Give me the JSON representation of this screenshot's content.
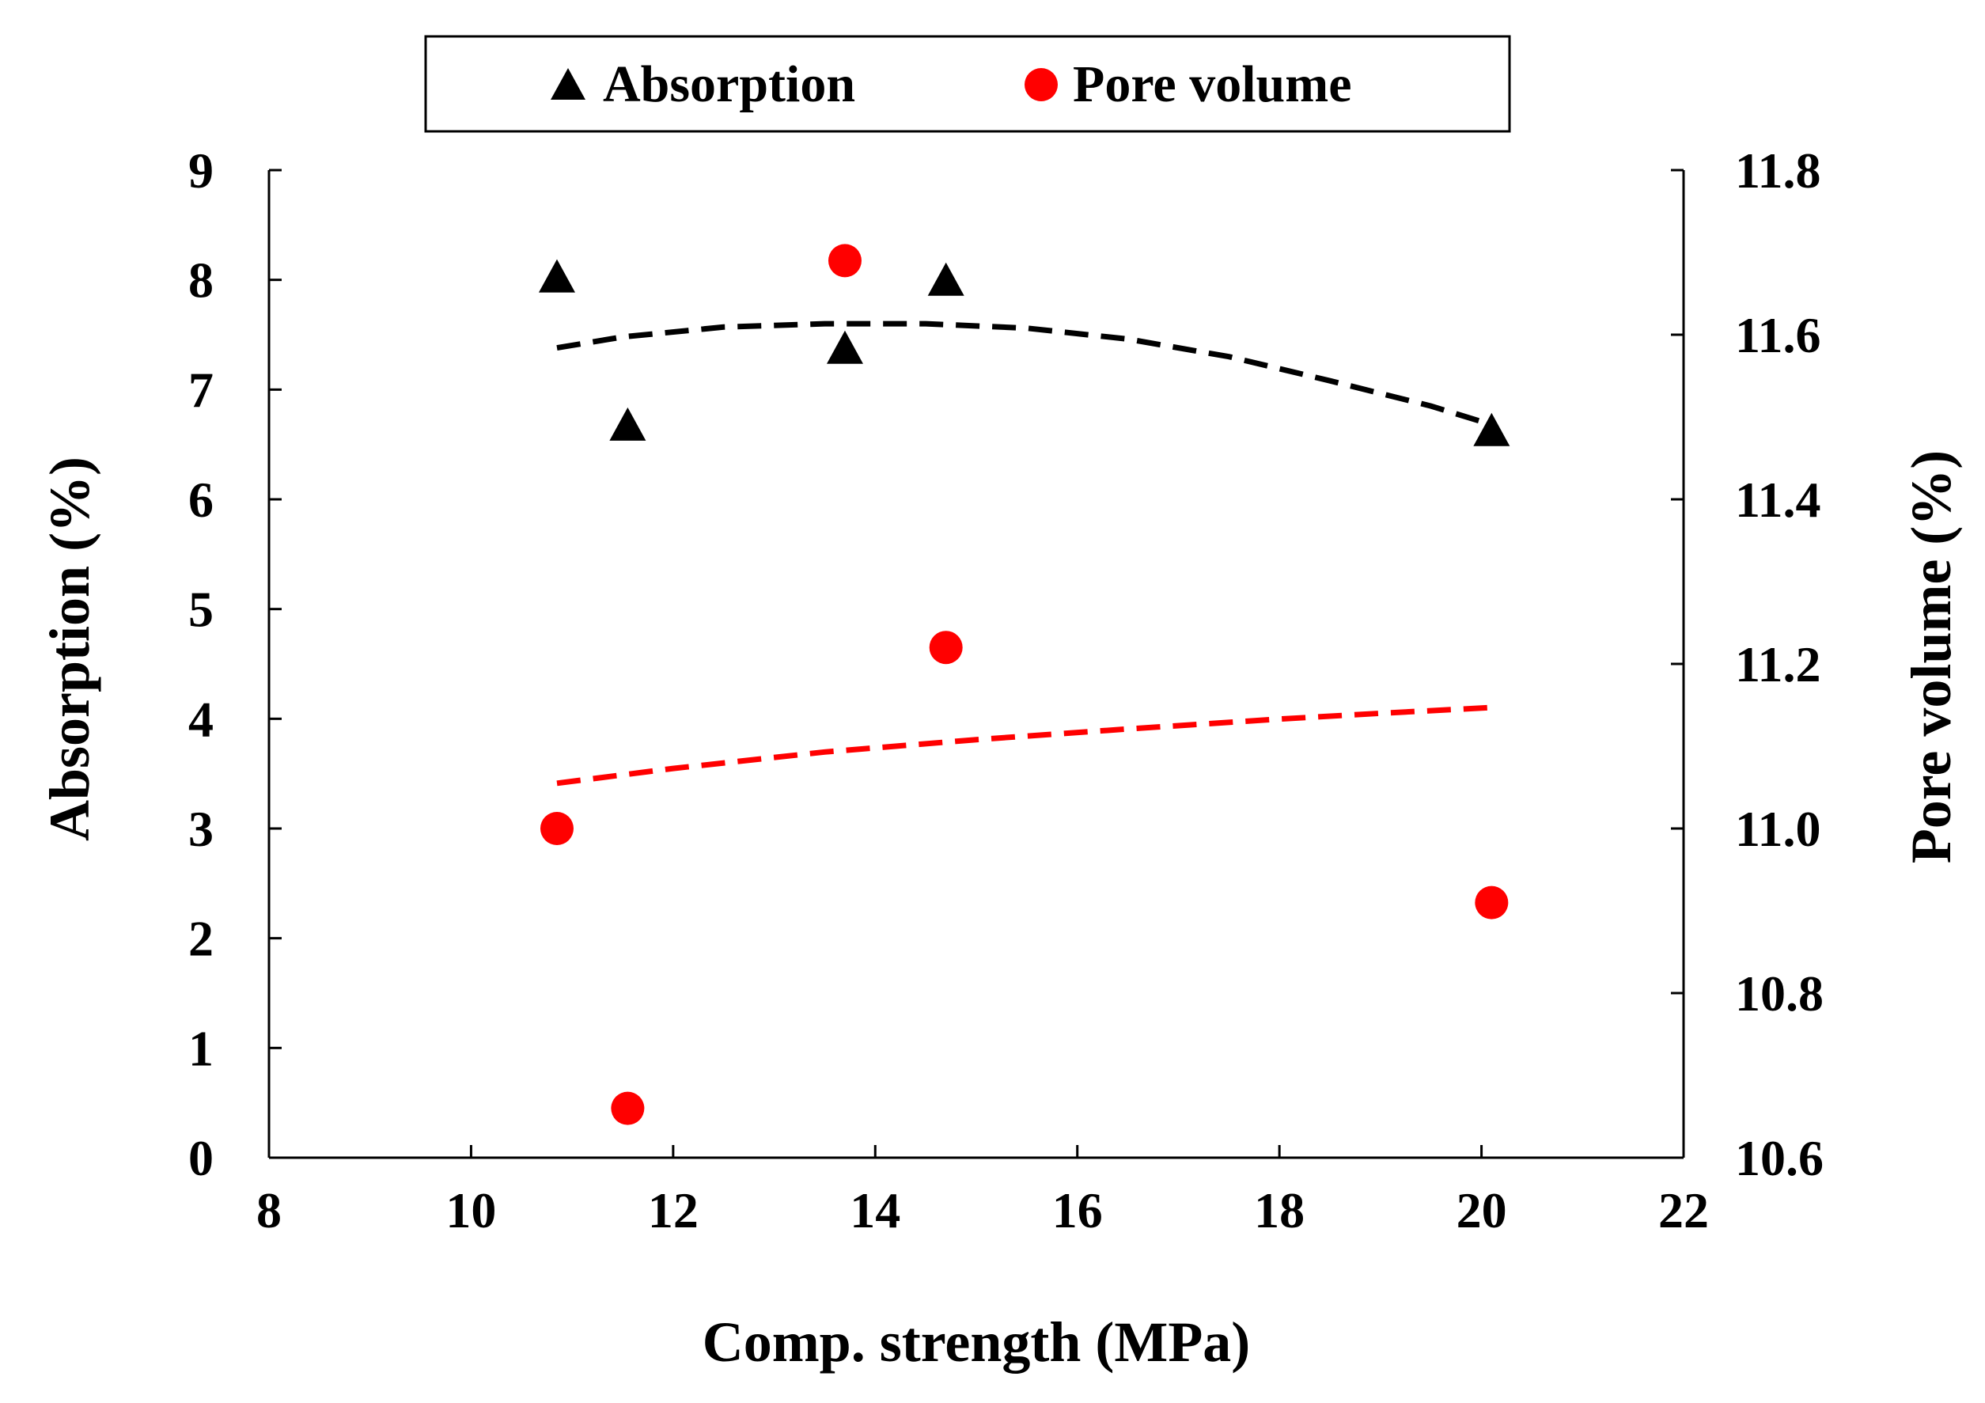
{
  "chart_data": {
    "type": "scatter",
    "title": "",
    "xlabel": "Comp. strength (MPa)",
    "ylabel_left": "Absorption (%)",
    "ylabel_right": "Pore volume (%)",
    "xlim": [
      8,
      22
    ],
    "ylim_left": [
      0,
      9
    ],
    "ylim_right": [
      10.6,
      11.8
    ],
    "x_ticks": [
      "8",
      "10",
      "12",
      "14",
      "16",
      "18",
      "20",
      "22"
    ],
    "y_left_ticks": [
      "0",
      "1",
      "2",
      "3",
      "4",
      "5",
      "6",
      "7",
      "8",
      "9"
    ],
    "y_right_ticks": [
      "10.6",
      "10.8",
      "11.0",
      "11.2",
      "11.4",
      "11.6",
      "11.8"
    ],
    "grid": false,
    "legend_position": "top",
    "series": [
      {
        "name": "Absorption",
        "axis": "left",
        "marker": "triangle",
        "color": "#000000",
        "points": [
          {
            "x": 10.85,
            "y": 8.0
          },
          {
            "x": 11.55,
            "y": 6.65
          },
          {
            "x": 13.7,
            "y": 7.35
          },
          {
            "x": 14.7,
            "y": 7.97
          },
          {
            "x": 20.1,
            "y": 6.6
          }
        ],
        "trend": {
          "type": "polynomial",
          "color": "#000000",
          "points": [
            {
              "x": 10.85,
              "y": 7.38
            },
            {
              "x": 11.5,
              "y": 7.48
            },
            {
              "x": 12.5,
              "y": 7.57
            },
            {
              "x": 13.5,
              "y": 7.6
            },
            {
              "x": 14.5,
              "y": 7.6
            },
            {
              "x": 15.5,
              "y": 7.56
            },
            {
              "x": 16.5,
              "y": 7.46
            },
            {
              "x": 17.5,
              "y": 7.3
            },
            {
              "x": 18.5,
              "y": 7.08
            },
            {
              "x": 19.5,
              "y": 6.85
            },
            {
              "x": 20.1,
              "y": 6.68
            }
          ]
        }
      },
      {
        "name": "Pore volume",
        "axis": "right",
        "marker": "circle",
        "color": "#ff0000",
        "points": [
          {
            "x": 10.85,
            "y": 11.0
          },
          {
            "x": 11.55,
            "y": 10.66
          },
          {
            "x": 13.7,
            "y": 11.69
          },
          {
            "x": 14.7,
            "y": 11.22
          },
          {
            "x": 20.1,
            "y": 10.91
          }
        ],
        "trend": {
          "type": "logarithmic",
          "color": "#ff0000",
          "points": [
            {
              "x": 10.85,
              "y": 11.055
            },
            {
              "x": 12.0,
              "y": 11.073
            },
            {
              "x": 13.5,
              "y": 11.093
            },
            {
              "x": 15.0,
              "y": 11.108
            },
            {
              "x": 16.5,
              "y": 11.121
            },
            {
              "x": 18.0,
              "y": 11.133
            },
            {
              "x": 19.0,
              "y": 11.14
            },
            {
              "x": 20.1,
              "y": 11.147
            }
          ]
        }
      }
    ]
  }
}
